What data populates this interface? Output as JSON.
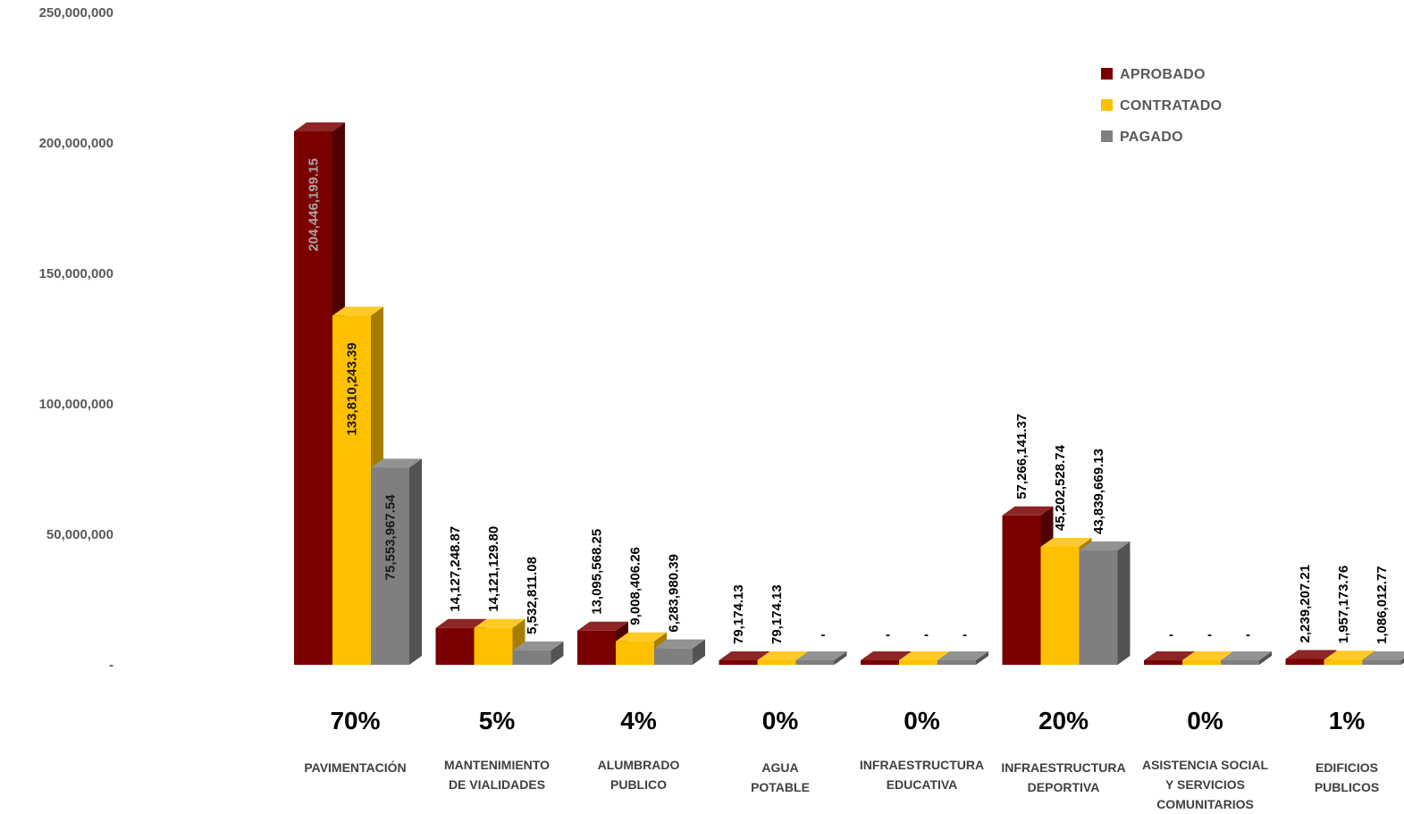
{
  "chart_data": {
    "type": "bar",
    "style": "3d-clustered-column",
    "categories": [
      [
        "PAVIMENTACIÓN"
      ],
      [
        "MANTENIMIENTO",
        "DE VIALIDADES"
      ],
      [
        "ALUMBRADO",
        "PUBLICO"
      ],
      [
        "AGUA",
        "POTABLE"
      ],
      [
        "INFRAESTRUCTURA",
        "EDUCATIVA"
      ],
      [
        "INFRAESTRUCTURA",
        "DEPORTIVA"
      ],
      [
        "ASISTENCIA SOCIAL",
        "Y SERVICIOS",
        "COMUNITARIOS"
      ],
      [
        "EDIFICIOS",
        "PUBLICOS"
      ]
    ],
    "percentages": [
      "70%",
      "5%",
      "4%",
      "0%",
      "0%",
      "20%",
      "0%",
      "1%"
    ],
    "series": [
      {
        "name": "APROBADO",
        "color": "#7a0000",
        "values": [
          204446199.15,
          14127248.87,
          13095568.25,
          79174.13,
          0,
          57266141.37,
          0,
          2239207.21
        ],
        "labels": [
          "204,446,199.15",
          "14,127,248.87",
          "13,095,568.25",
          "79,174.13",
          "-",
          "57,266,141.37",
          "-",
          "2,239,207.21"
        ]
      },
      {
        "name": "CONTRATADO",
        "color": "#ffc000",
        "values": [
          133810243.39,
          14121129.8,
          9008406.26,
          79174.13,
          0,
          45202528.74,
          0,
          1957173.76
        ],
        "labels": [
          "133,810,243.39",
          "14,121,129.80",
          "9,008,406.26",
          "79,174.13",
          "-",
          "45,202,528.74",
          "-",
          "1,957,173.76"
        ]
      },
      {
        "name": "PAGADO",
        "color": "#7f7f7f",
        "values": [
          75553967.54,
          5532811.08,
          6283980.39,
          0,
          0,
          43839669.13,
          0,
          1086012.77
        ],
        "labels": [
          "75,553,967.54",
          "5,532,811.08",
          "6,283,980.39",
          "-",
          "-",
          "43,839,669.13",
          "-",
          "1,086,012.77"
        ]
      }
    ],
    "yticks": [
      "-",
      "50,000,000",
      "100,000,000",
      "150,000,000",
      "200,000,000",
      "250,000,000"
    ],
    "ylim": [
      0,
      250000000
    ],
    "grid": false,
    "legend": "top-right"
  }
}
